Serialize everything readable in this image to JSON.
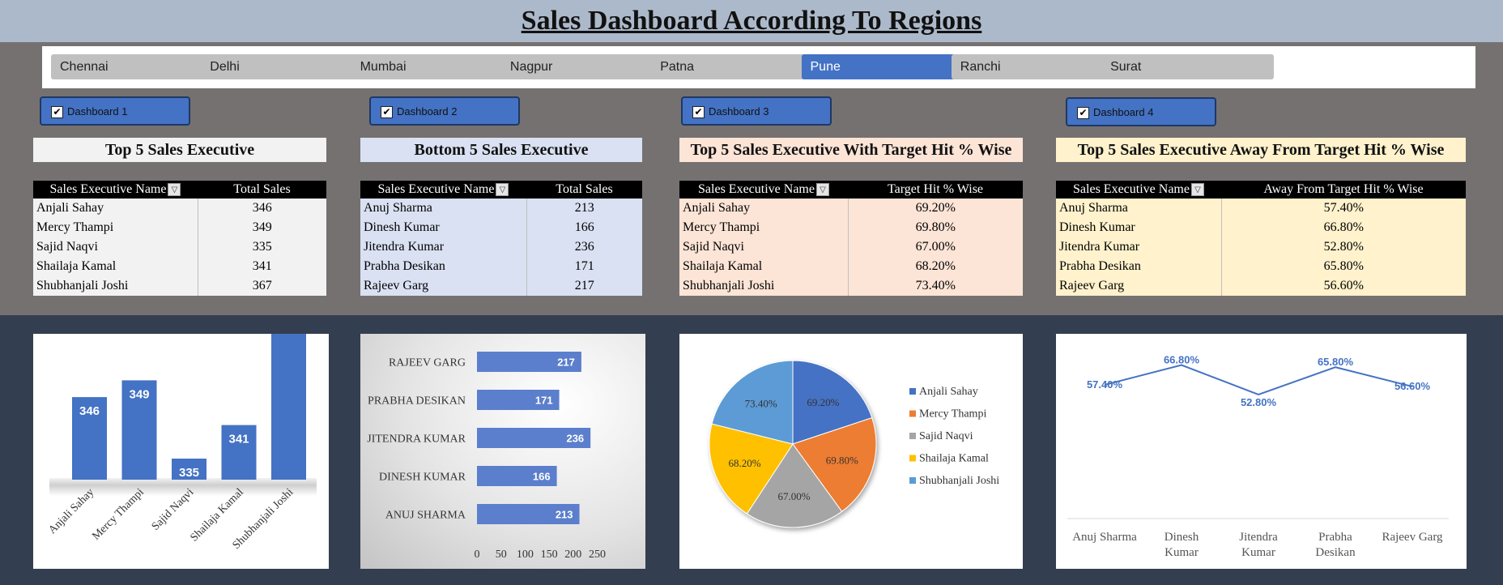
{
  "title": "Sales Dashboard According To Regions",
  "slicer": {
    "items": [
      "Chennai",
      "Delhi",
      "Mumbai",
      "Nagpur",
      "Patna",
      "Pune",
      "Ranchi",
      "Surat"
    ],
    "selected": "Pune"
  },
  "checkboxes": [
    {
      "label": "Dashboard 1",
      "checked": true
    },
    {
      "label": "Dashboard 2",
      "checked": true
    },
    {
      "label": "Dashboard 3",
      "checked": true
    },
    {
      "label": "Dashboard 4",
      "checked": true
    }
  ],
  "tables": [
    {
      "title": "Top 5 Sales Executive",
      "col1": "Sales Executive Name",
      "col2": "Total Sales",
      "rows": [
        [
          "Anjali Sahay",
          "346"
        ],
        [
          "Mercy Thampi",
          "349"
        ],
        [
          "Sajid Naqvi",
          "335"
        ],
        [
          "Shailaja Kamal",
          "341"
        ],
        [
          "Shubhanjali Joshi",
          "367"
        ]
      ],
      "bg": "#f2f2f2"
    },
    {
      "title": "Bottom 5 Sales Executive",
      "col1": "Sales Executive Name",
      "col2": "Total Sales",
      "rows": [
        [
          "Anuj Sharma",
          "213"
        ],
        [
          "Dinesh Kumar",
          "166"
        ],
        [
          "Jitendra Kumar",
          "236"
        ],
        [
          "Prabha Desikan",
          "171"
        ],
        [
          "Rajeev Garg",
          "217"
        ]
      ],
      "bg": "#d9e1f2"
    },
    {
      "title": "Top 5 Sales Executive With Target Hit % Wise",
      "col1": "Sales Executive Name",
      "col2": "Target Hit % Wise",
      "rows": [
        [
          "Anjali Sahay",
          "69.20%"
        ],
        [
          "Mercy Thampi",
          "69.80%"
        ],
        [
          "Sajid Naqvi",
          "67.00%"
        ],
        [
          "Shailaja Kamal",
          "68.20%"
        ],
        [
          "Shubhanjali Joshi",
          "73.40%"
        ]
      ],
      "bg": "#fce4d6"
    },
    {
      "title": "Top 5 Sales Executive Away From Target Hit % Wise",
      "col1": "Sales Executive Name",
      "col2": "Away From Target Hit % Wise",
      "rows": [
        [
          "Anuj Sharma",
          "57.40%"
        ],
        [
          "Dinesh Kumar",
          "66.80%"
        ],
        [
          "Jitendra Kumar",
          "52.80%"
        ],
        [
          "Prabha Desikan",
          "65.80%"
        ],
        [
          "Rajeev Garg",
          "56.60%"
        ]
      ],
      "bg": "#fff2cc"
    }
  ],
  "filter_icon": "filter-icon",
  "checkbox_icon": "check-icon",
  "chart_data": [
    {
      "type": "bar",
      "categories": [
        "Anjali Sahay",
        "Mercy Thampi",
        "Sajid Naqvi",
        "Shailaja Kamal",
        "Shubhanjali Joshi"
      ],
      "values": [
        346,
        349,
        335,
        341,
        367
      ],
      "color": "#4472c4"
    },
    {
      "type": "bar",
      "orientation": "horizontal",
      "categories": [
        "RAJEEV GARG",
        "PRABHA DESIKAN",
        "JITENDRA KUMAR",
        "DINESH KUMAR",
        "ANUJ SHARMA"
      ],
      "values": [
        217,
        171,
        236,
        166,
        213
      ],
      "xlim": [
        0,
        250
      ],
      "xticks": [
        "0",
        "50",
        "100",
        "150",
        "200",
        "250"
      ],
      "color": "#5b7fcc"
    },
    {
      "type": "pie",
      "categories": [
        "Anjali Sahay",
        "Mercy Thampi",
        "Sajid Naqvi",
        "Shailaja Kamal",
        "Shubhanjali Joshi"
      ],
      "values": [
        69.2,
        69.8,
        67.0,
        68.2,
        73.4
      ],
      "labels": [
        "69.20%",
        "69.80%",
        "67.00%",
        "68.20%",
        "73.40%"
      ],
      "colors": [
        "#4472c4",
        "#ed7d31",
        "#a5a5a5",
        "#ffc000",
        "#5b9bd5"
      ],
      "legend": "right"
    },
    {
      "type": "line",
      "categories": [
        "Anuj Sharma",
        "Dinesh Kumar",
        "Jitendra Kumar",
        "Prabha Desikan",
        "Rajeev Garg"
      ],
      "category_lines": [
        [
          "Anuj Sharma"
        ],
        [
          "Dinesh",
          "Kumar"
        ],
        [
          "Jitendra",
          "Kumar"
        ],
        [
          "Prabha",
          "Desikan"
        ],
        [
          "Rajeev Garg"
        ]
      ],
      "values": [
        57.4,
        66.8,
        52.8,
        65.8,
        56.6
      ],
      "labels": [
        "57.40%",
        "66.80%",
        "52.80%",
        "65.80%",
        "56.60%"
      ],
      "color": "#4472c4"
    }
  ]
}
